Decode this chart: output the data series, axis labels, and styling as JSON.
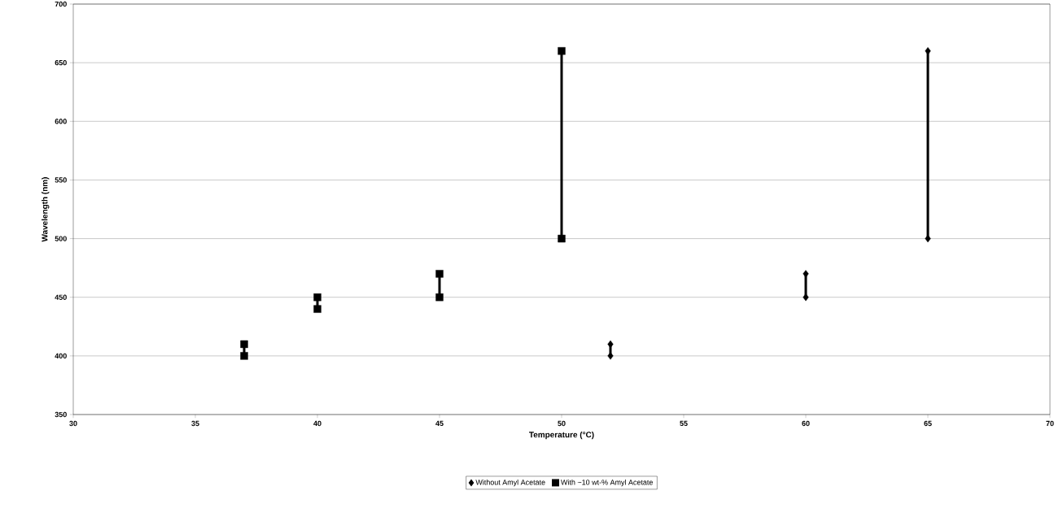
{
  "chart_data": {
    "type": "line",
    "xlabel": "Temperature (°C)",
    "ylabel": "Wavelength (nm)",
    "xlim": [
      30,
      70
    ],
    "xticks": [
      30,
      35,
      40,
      45,
      50,
      55,
      60,
      65,
      70
    ],
    "ylim": [
      350,
      700
    ],
    "yticks": [
      350,
      400,
      450,
      500,
      550,
      600,
      650,
      700
    ],
    "grid": "y",
    "legend": "bottom",
    "line_style": "solid",
    "series": [
      {
        "name": "Without Amyl Acetate",
        "color": "#000000",
        "marker": "diamond",
        "x": [
          52,
          52,
          null,
          60,
          60,
          null,
          65,
          65
        ],
        "values": [
          400,
          410,
          null,
          450,
          470,
          null,
          500,
          660
        ]
      },
      {
        "name": "With ~10 wt-% Amyl Acetate",
        "color": "#000000",
        "marker": "square",
        "x": [
          37,
          37,
          null,
          40,
          40,
          null,
          45,
          45,
          null,
          50,
          50
        ],
        "values": [
          400,
          410,
          null,
          440,
          450,
          null,
          450,
          470,
          null,
          500,
          660
        ]
      }
    ]
  }
}
